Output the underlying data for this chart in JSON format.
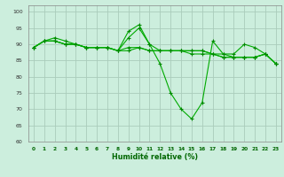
{
  "title": "",
  "xlabel": "Humidité relative (%)",
  "ylabel": "",
  "bg_color": "#cceedd",
  "grid_color": "#aaccbb",
  "line_color": "#00aa00",
  "marker_color": "#008800",
  "xlim": [
    -0.5,
    23.5
  ],
  "ylim": [
    60,
    102
  ],
  "yticks": [
    60,
    65,
    70,
    75,
    80,
    85,
    90,
    95,
    100
  ],
  "xticks": [
    0,
    1,
    2,
    3,
    4,
    5,
    6,
    7,
    8,
    9,
    10,
    11,
    12,
    13,
    14,
    15,
    16,
    17,
    18,
    19,
    20,
    21,
    22,
    23
  ],
  "series": [
    [
      89,
      91,
      91,
      90,
      90,
      89,
      89,
      89,
      88,
      94,
      96,
      90,
      84,
      75,
      70,
      67,
      72,
      91,
      87,
      87,
      90,
      89,
      87,
      84
    ],
    [
      89,
      91,
      92,
      91,
      90,
      89,
      89,
      89,
      88,
      92,
      95,
      90,
      88,
      88,
      88,
      87,
      87,
      87,
      86,
      86,
      86,
      86,
      87,
      84
    ],
    [
      89,
      91,
      91,
      90,
      90,
      89,
      89,
      89,
      88,
      89,
      89,
      88,
      88,
      88,
      88,
      88,
      88,
      87,
      86,
      86,
      86,
      86,
      87,
      84
    ],
    [
      89,
      91,
      91,
      90,
      90,
      89,
      89,
      89,
      88,
      88,
      89,
      88,
      88,
      88,
      88,
      88,
      88,
      87,
      87,
      86,
      86,
      86,
      87,
      84
    ]
  ]
}
